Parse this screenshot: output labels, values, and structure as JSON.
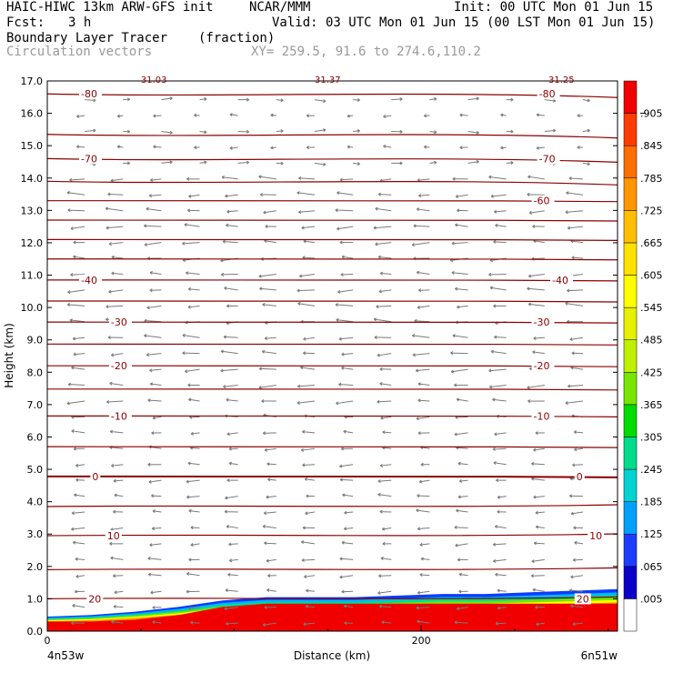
{
  "header": {
    "model": "HAIC-HIWC 13km ARW-GFS init",
    "org": "NCAR/MMM",
    "init": "Init: 00 UTC Mon 01 Jun 15",
    "fcst_label": "Fcst:",
    "fcst_value": "3 h",
    "valid": "Valid: 03 UTC Mon 01 Jun 15 (00 LST Mon 01 Jun 15)",
    "field": "Boundary Layer Tracer",
    "units": "(fraction)",
    "overlay": "Circulation vectors",
    "xy": "XY= 259.5, 91.6 to 274.6,110.2"
  },
  "chart_data": {
    "type": "heatmap",
    "xlabel": "Distance (km)",
    "ylabel": "Height (km)",
    "xlim": [
      0,
      305
    ],
    "ylim": [
      0,
      17
    ],
    "x_ticks": [
      {
        "value": 0,
        "label": "0"
      },
      {
        "value": 200,
        "label": "200"
      }
    ],
    "y_ticks": [
      "0.0",
      "1.0",
      "2.0",
      "3.0",
      "4.0",
      "5.0",
      "6.0",
      "7.0",
      "8.0",
      "9.0",
      "10.0",
      "11.0",
      "12.0",
      "13.0",
      "14.0",
      "15.0",
      "16.0",
      "17.0"
    ],
    "endpoints": {
      "left": "4n53w",
      "right": "6n51w"
    },
    "top_labels": [
      {
        "x": 57,
        "text": "31.03"
      },
      {
        "x": 150,
        "text": "31.37"
      },
      {
        "x": 275,
        "text": "31.25"
      }
    ],
    "isotherms": {
      "unit": "°C",
      "levels": [
        {
          "t": 20,
          "h": 1.0,
          "label": "20",
          "lx": [
            22,
            283
          ]
        },
        {
          "t": 15,
          "h": 1.9
        },
        {
          "t": 10,
          "h": 2.95,
          "label": "10",
          "lx": [
            32,
            290
          ]
        },
        {
          "t": 5,
          "h": 3.85
        },
        {
          "t": 0,
          "h": 4.78,
          "label": "0",
          "lx": [
            24,
            283
          ]
        },
        {
          "t": -5,
          "h": 5.7
        },
        {
          "t": -10,
          "h": 6.65,
          "label": "-10",
          "lx": [
            34,
            260
          ]
        },
        {
          "t": -15,
          "h": 7.48
        },
        {
          "t": -20,
          "h": 8.2,
          "label": "-20",
          "lx": [
            34,
            260
          ]
        },
        {
          "t": -25,
          "h": 8.87
        },
        {
          "t": -30,
          "h": 9.55,
          "label": "-30",
          "lx": [
            34,
            260
          ]
        },
        {
          "t": -35,
          "h": 10.2
        },
        {
          "t": -40,
          "h": 10.85,
          "label": "-40",
          "lx": [
            18,
            270
          ]
        },
        {
          "t": -45,
          "h": 11.5
        },
        {
          "t": -50,
          "h": 12.1
        },
        {
          "t": -55,
          "h": 12.7
        },
        {
          "t": -60,
          "h": 13.3,
          "label": "-60",
          "lx": [
            260
          ]
        },
        {
          "t": -65,
          "h": 13.9
        },
        {
          "t": -70,
          "h": 14.6,
          "label": "-70",
          "lx": [
            18,
            263
          ]
        },
        {
          "t": -75,
          "h": 15.35
        },
        {
          "t": -80,
          "h": 16.6,
          "label": "-80",
          "lx": [
            18,
            263
          ]
        }
      ]
    },
    "boundary_layer": {
      "top_km": [
        0.45,
        0.5,
        0.6,
        0.75,
        0.95,
        1.05,
        1.05,
        1.05,
        1.1,
        1.15,
        1.15,
        1.2,
        1.25,
        1.3
      ],
      "core_top_km": [
        0.3,
        0.3,
        0.35,
        0.5,
        0.75,
        0.85,
        0.85,
        0.85,
        0.85,
        0.85,
        0.85,
        0.85,
        0.85,
        0.85
      ]
    },
    "colorbar": {
      "labels": [
        ".005",
        ".065",
        ".125",
        ".185",
        ".245",
        ".305",
        ".365",
        ".425",
        ".485",
        ".545",
        ".605",
        ".665",
        ".725",
        ".785",
        ".845",
        ".905"
      ],
      "colors": [
        "#ffffff",
        "#0a00c8",
        "#1e3cff",
        "#00a0ff",
        "#00d2d2",
        "#00dc8c",
        "#00dc00",
        "#78e600",
        "#bef000",
        "#e6f000",
        "#ffff00",
        "#ffe100",
        "#ffbe00",
        "#ff9600",
        "#ff6e00",
        "#ff3c00",
        "#f00000"
      ]
    }
  }
}
